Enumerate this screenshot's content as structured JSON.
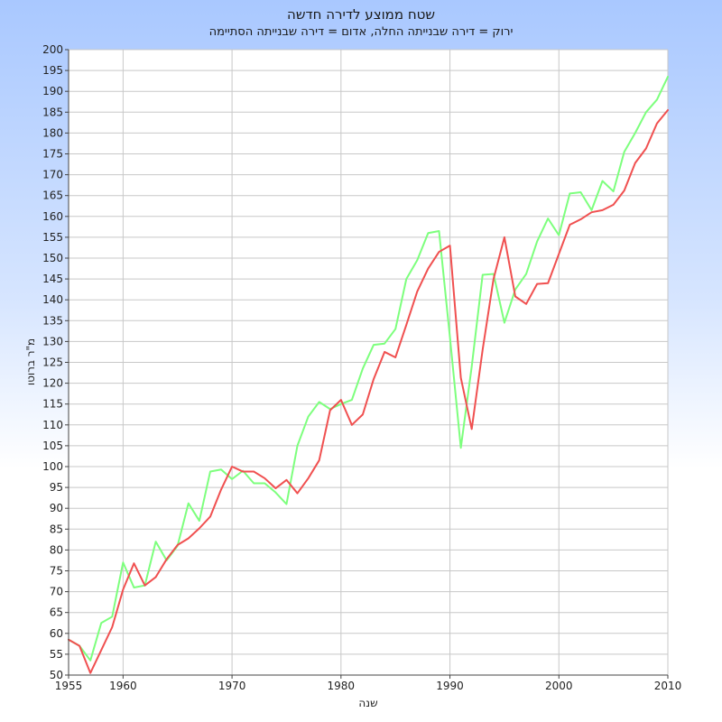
{
  "chart_data": {
    "type": "line",
    "title": "שטח ממוצע לדירה חדשה",
    "subtitle": "ירוק = דירה שבנייתה החלה, אדום = דירה שבנייתה הסתיימה",
    "xlabel": "שנה",
    "ylabel": "מ\"ר ברוטו",
    "xlim": [
      1955,
      2010
    ],
    "ylim": [
      50,
      200
    ],
    "x_ticks": [
      1955,
      1960,
      1970,
      1980,
      1990,
      2000,
      2010
    ],
    "y_ticks": [
      50,
      55,
      60,
      65,
      70,
      75,
      80,
      85,
      90,
      95,
      100,
      105,
      110,
      115,
      120,
      125,
      130,
      135,
      140,
      145,
      150,
      155,
      160,
      165,
      170,
      175,
      180,
      185,
      190,
      195,
      200
    ],
    "grid": true,
    "series": [
      {
        "color": "#7dff7d",
        "x": [
          1955,
          1956,
          1957,
          1958,
          1959,
          1960,
          1961,
          1962,
          1963,
          1964,
          1965,
          1966,
          1967,
          1968,
          1969,
          1970,
          1971,
          1972,
          1973,
          1974,
          1975,
          1976,
          1977,
          1978,
          1979,
          1980,
          1981,
          1982,
          1983,
          1984,
          1985,
          1986,
          1987,
          1988,
          1989,
          1990,
          1991,
          1992,
          1993,
          1994,
          1995,
          1996,
          1997,
          1998,
          1999,
          2000,
          2001,
          2002,
          2003,
          2004,
          2005,
          2006,
          2007,
          2008,
          2009,
          2010
        ],
        "y": [
          58.5,
          57,
          53.5,
          62.5,
          64,
          77,
          71,
          71.5,
          82,
          77.5,
          81,
          91.2,
          87,
          98.8,
          99.3,
          97,
          99,
          96,
          96,
          93.8,
          91,
          105,
          112,
          115.5,
          113.8,
          115,
          116,
          123.5,
          129.2,
          129.5,
          133,
          145,
          149.5,
          156,
          156.5,
          131,
          104.5,
          124,
          146,
          146.2,
          134.5,
          142.5,
          146.2,
          154,
          159.5,
          155.5,
          165.5,
          165.8,
          161.5,
          168.5,
          166,
          175.5,
          180,
          185,
          188,
          193.5
        ]
      },
      {
        "color": "#f05050",
        "x": [
          1955,
          1956,
          1957,
          1958,
          1959,
          1960,
          1961,
          1962,
          1963,
          1964,
          1965,
          1966,
          1967,
          1968,
          1969,
          1970,
          1971,
          1972,
          1973,
          1974,
          1975,
          1976,
          1977,
          1978,
          1979,
          1980,
          1981,
          1982,
          1983,
          1984,
          1985,
          1986,
          1987,
          1988,
          1989,
          1990,
          1991,
          1992,
          1993,
          1994,
          1995,
          1996,
          1997,
          1998,
          1999,
          2000,
          2001,
          2002,
          2003,
          2004,
          2005,
          2006,
          2007,
          2008,
          2009,
          2010
        ],
        "y": [
          58.5,
          57,
          50.5,
          56,
          61.5,
          70.5,
          76.8,
          71.5,
          73.5,
          77.8,
          81.2,
          82.8,
          85.2,
          88,
          94.5,
          100,
          98.8,
          98.8,
          97.2,
          94.8,
          96.8,
          93.6,
          97.2,
          101.5,
          113.5,
          116,
          110,
          112.5,
          121,
          127.5,
          126.2,
          134,
          142,
          147.5,
          151.5,
          153,
          121.3,
          109,
          128,
          145,
          155,
          140.8,
          139,
          143.8,
          144,
          151,
          158,
          159.3,
          161,
          161.5,
          162.8,
          166.2,
          172.8,
          176.3,
          182.3,
          185.5
        ]
      }
    ]
  }
}
